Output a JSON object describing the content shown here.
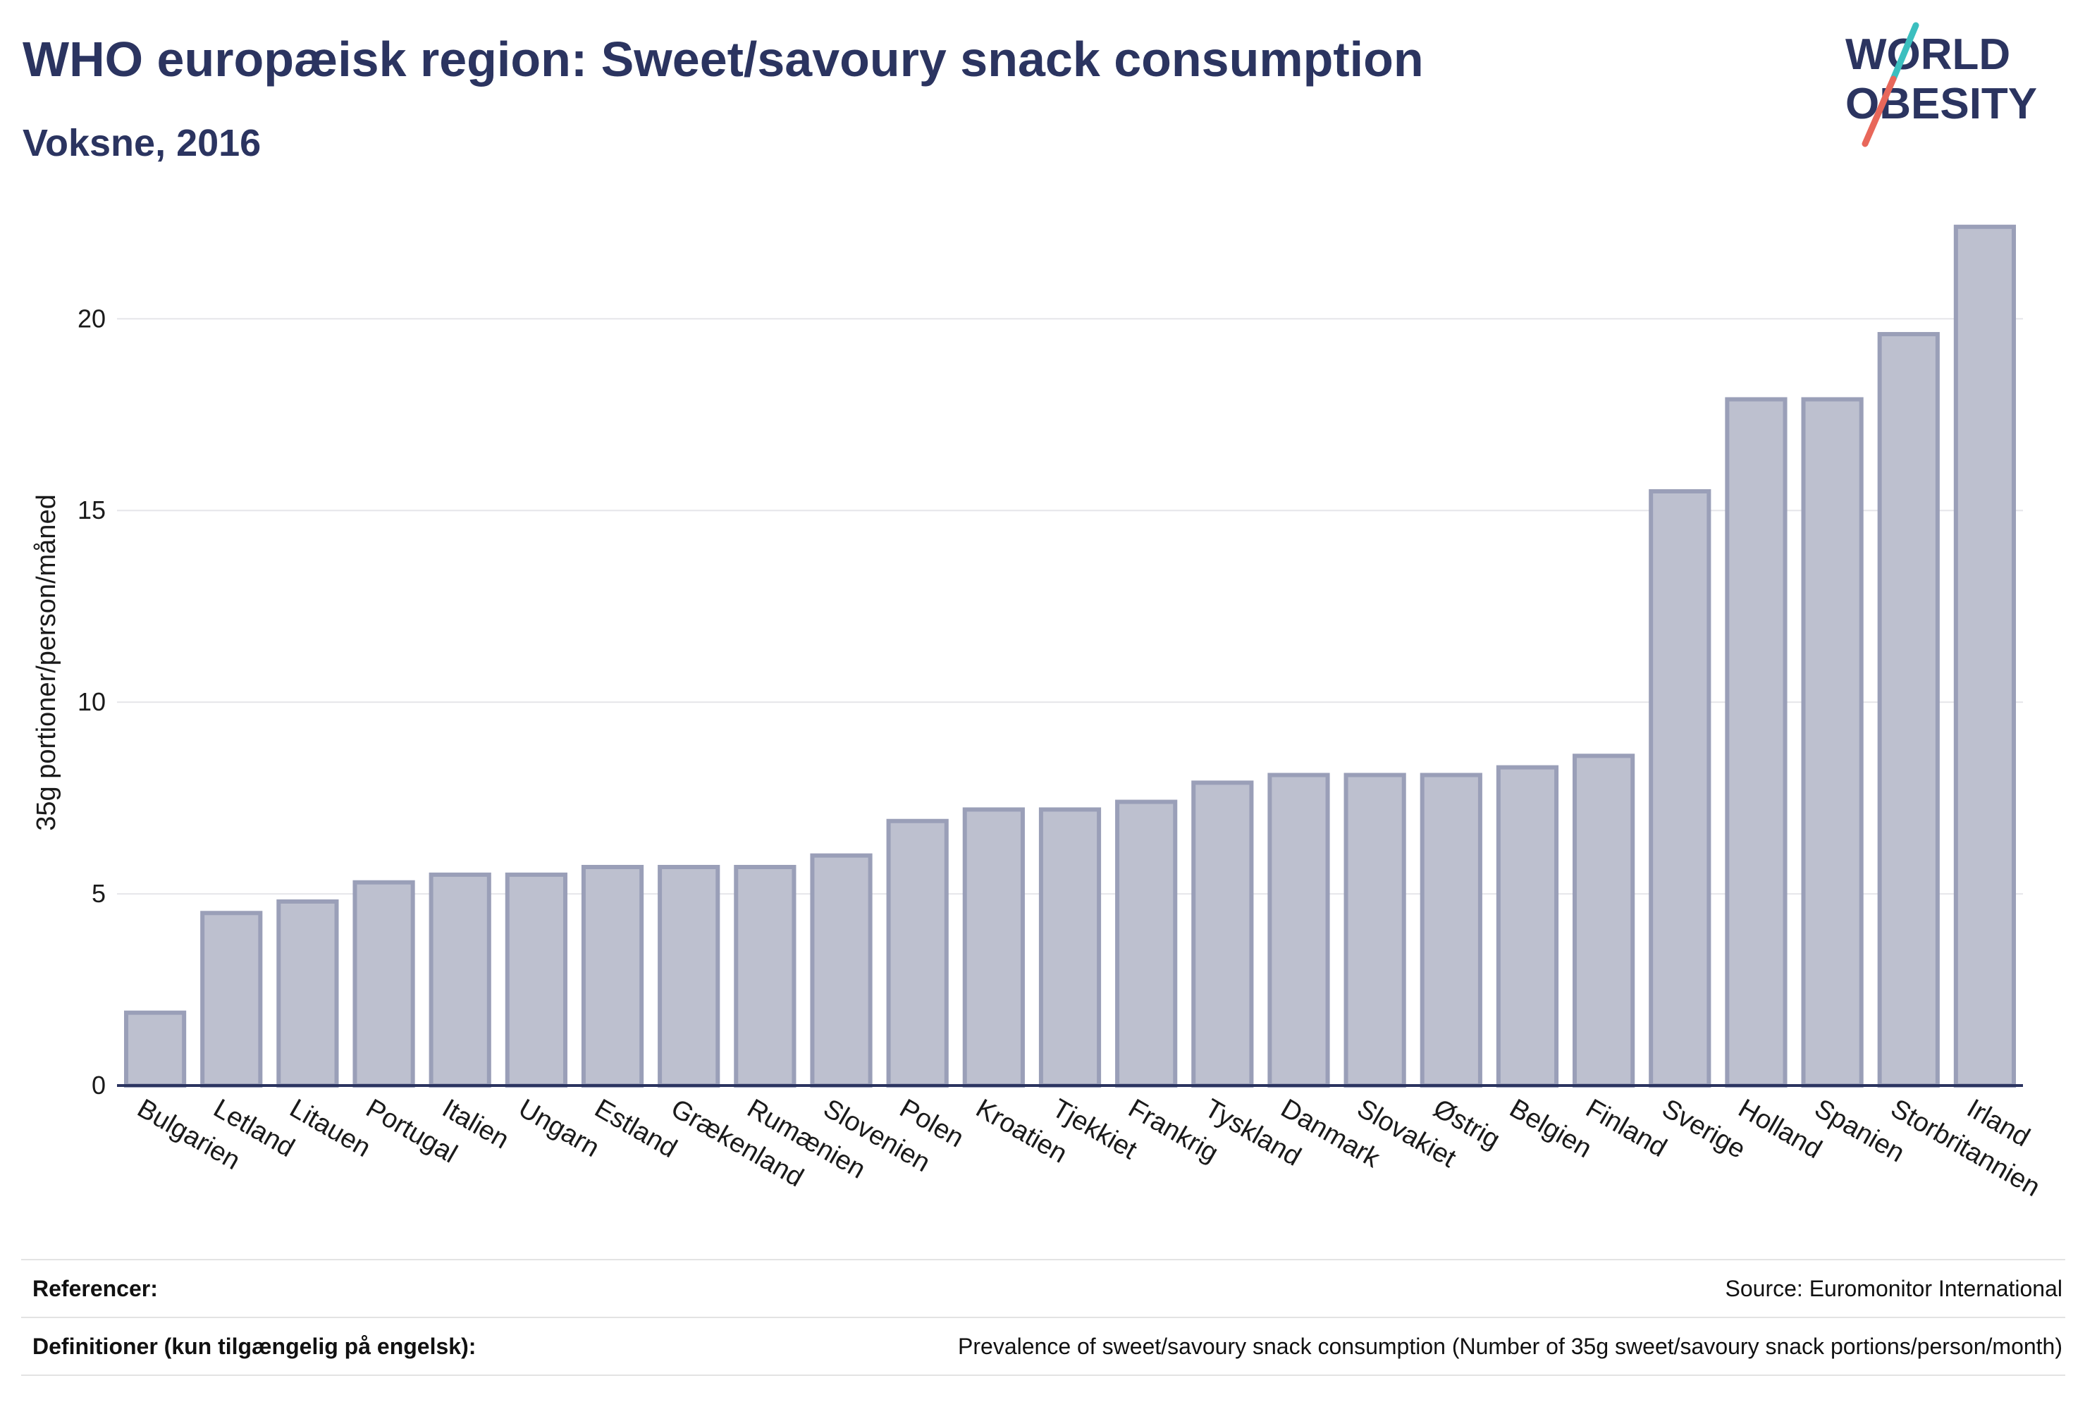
{
  "header": {
    "title": "WHO europæisk region: Sweet/savoury snack consumption",
    "subtitle": "Voksne, 2016"
  },
  "logo": {
    "line1": "WORLD",
    "line2": "OBESITY",
    "colors": {
      "text": "#2b3460",
      "slash_top": "#3bbfbf",
      "slash_bottom": "#e8675a"
    }
  },
  "footer": {
    "references_label": "Referencer:",
    "references_value": "Source: Euromonitor International",
    "definitions_label": "Definitioner (kun tilgængelig på engelsk):",
    "definitions_value": "Prevalence of sweet/savoury snack consumption (Number of 35g sweet/savoury snack portions/person/month)"
  },
  "colors": {
    "bar_fill": "#bdc0cf",
    "bar_stroke": "#9a9fb8",
    "grid": "#e6e6ea",
    "axis": "#2b3460"
  },
  "chart_data": {
    "type": "bar",
    "categories": [
      "Bulgarien",
      "Letland",
      "Litauen",
      "Portugal",
      "Italien",
      "Ungarn",
      "Estland",
      "Grækenland",
      "Rumænien",
      "Slovenien",
      "Polen",
      "Kroatien",
      "Tjekkiet",
      "Frankrig",
      "Tyskland",
      "Danmark",
      "Slovakiet",
      "Østrig",
      "Belgien",
      "Finland",
      "Sverige",
      "Holland",
      "Spanien",
      "Storbritannien",
      "Irland"
    ],
    "values": [
      1.9,
      4.5,
      4.8,
      5.3,
      5.5,
      5.5,
      5.7,
      5.7,
      5.7,
      6.0,
      6.9,
      7.2,
      7.2,
      7.4,
      7.9,
      8.1,
      8.1,
      8.1,
      8.3,
      8.6,
      15.5,
      17.9,
      17.9,
      19.6,
      22.4
    ],
    "ylabel": "35g portioner/person/måned",
    "xlabel": "",
    "ylim": [
      0,
      22.8
    ],
    "yticks": [
      0,
      5,
      10,
      15,
      20
    ],
    "grid": true,
    "legend": "none"
  }
}
